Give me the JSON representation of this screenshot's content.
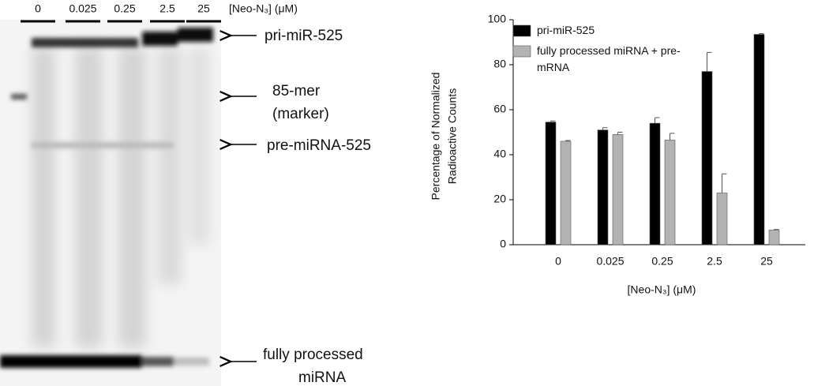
{
  "gel": {
    "header": "[Neo-N₃] (μM)",
    "lanes": [
      "0",
      "0.025",
      "0.25",
      "2.5",
      "25"
    ],
    "bands": [
      [
        "pri-miR-525"
      ],
      [
        "85-mer",
        "(marker)"
      ],
      [
        "pre-miRNA-525"
      ],
      [
        "fully processed",
        "miRNA"
      ]
    ]
  },
  "chart_data": {
    "type": "bar",
    "categories": [
      "0",
      "0.025",
      "0.25",
      "2.5",
      "25"
    ],
    "series": [
      {
        "name": "pri-miR-525",
        "color": "#000000",
        "values": [
          54.5,
          51,
          54,
          77,
          93.5
        ],
        "errors": [
          0.5,
          1,
          2.5,
          8.5,
          0.3
        ]
      },
      {
        "name": "fully processed miRNA + pre-mRNA",
        "color": "#b3b3b3",
        "values": [
          46,
          49,
          46.5,
          23,
          6.5
        ],
        "errors": [
          0.3,
          1,
          3,
          8.5,
          0.3
        ]
      }
    ],
    "ylabel": [
      "Percentage of Normalized",
      "Radioactive Counts"
    ],
    "xlabel": "[Neo-N₃] (μM)",
    "ylim": [
      0,
      100
    ],
    "yticks": [
      0,
      20,
      40,
      60,
      80,
      100
    ],
    "legend": "upper-left"
  }
}
